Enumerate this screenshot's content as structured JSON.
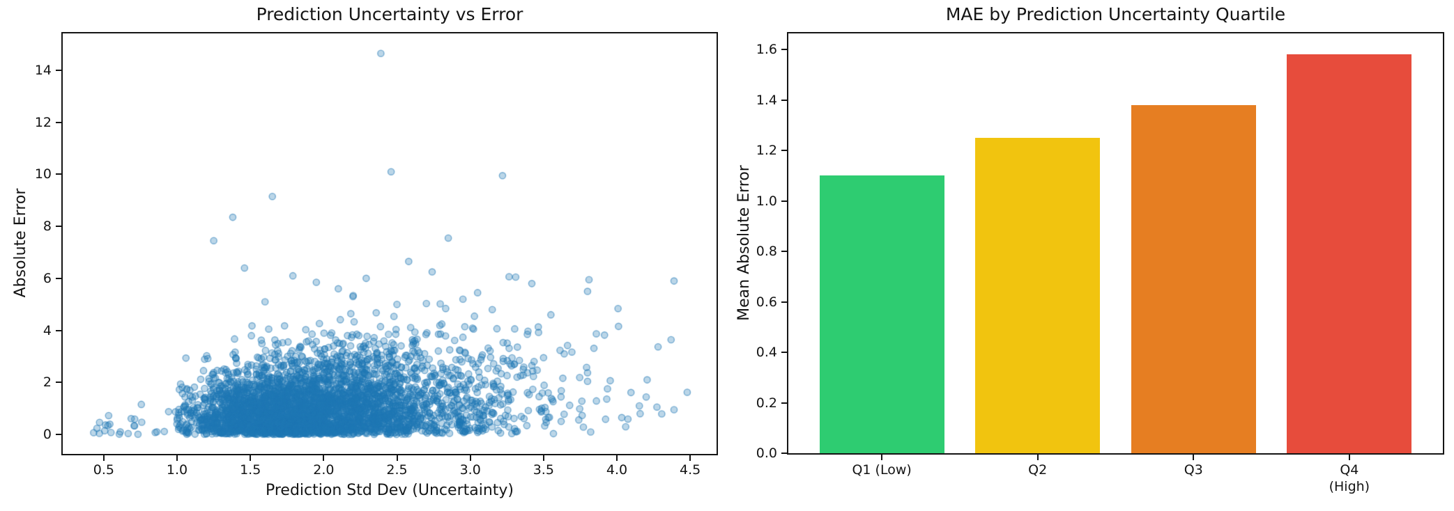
{
  "chart_data": [
    {
      "type": "scatter",
      "title": "Prediction Uncertainty vs Error",
      "xlabel": "Prediction Std Dev (Uncertainty)",
      "ylabel": "Absolute Error",
      "xlim": [
        0.22,
        4.68
      ],
      "ylim": [
        -0.75,
        15.42
      ],
      "xticks": [
        0.5,
        1.0,
        1.5,
        2.0,
        2.5,
        3.0,
        3.5,
        4.0,
        4.5
      ],
      "xtick_labels": [
        "0.5",
        "1.0",
        "1.5",
        "2.0",
        "2.5",
        "3.0",
        "3.5",
        "4.0",
        "4.5"
      ],
      "yticks": [
        0,
        2,
        4,
        6,
        8,
        10,
        12,
        14
      ],
      "ytick_labels": [
        "0",
        "2",
        "4",
        "6",
        "8",
        "10",
        "12",
        "14"
      ],
      "grid": false,
      "legend": null,
      "marker": {
        "color": "#1f77b4",
        "fill_alpha": 0.3,
        "edge_alpha": 0.55,
        "radius": 4.6,
        "edge_width": 1.4
      },
      "cloud": {
        "note": "dense semi-transparent point cloud; x log-normal around 1.9, abs-error half-normal whose spread grows with x",
        "n": 3800,
        "seed": 42,
        "x_median": 1.93,
        "x_log_sigma": 0.27,
        "x_min": 1.0,
        "x_max": 4.6,
        "y_sigma_base": 0.55,
        "y_sigma_slope": 0.45
      },
      "low_tail": {
        "n": 28,
        "x_min": 0.4,
        "x_max": 1.05,
        "y_sigma": 0.45
      },
      "outliers": [
        [
          2.39,
          14.65
        ],
        [
          2.46,
          10.1
        ],
        [
          3.22,
          9.95
        ],
        [
          1.65,
          9.15
        ],
        [
          1.38,
          8.35
        ],
        [
          1.25,
          7.45
        ],
        [
          2.85,
          7.55
        ],
        [
          2.58,
          6.65
        ],
        [
          1.46,
          6.4
        ],
        [
          2.74,
          6.25
        ],
        [
          1.79,
          6.1
        ],
        [
          2.29,
          6.0
        ],
        [
          3.31,
          6.05
        ],
        [
          1.95,
          5.85
        ],
        [
          2.1,
          5.6
        ],
        [
          3.42,
          5.8
        ],
        [
          3.05,
          5.45
        ],
        [
          3.81,
          5.95
        ],
        [
          3.8,
          5.5
        ],
        [
          4.39,
          5.9
        ],
        [
          3.55,
          4.6
        ],
        [
          3.86,
          3.87
        ],
        [
          4.37,
          3.64
        ],
        [
          3.5,
          2.95
        ],
        [
          3.8,
          2.37
        ],
        [
          3.8,
          2.04
        ],
        [
          4.48,
          1.62
        ],
        [
          4.2,
          1.44
        ],
        [
          4.39,
          0.95
        ],
        [
          3.62,
          0.5
        ],
        [
          2.2,
          5.3
        ],
        [
          2.95,
          5.2
        ],
        [
          1.6,
          5.1
        ],
        [
          2.5,
          5.0
        ],
        [
          3.15,
          4.8
        ]
      ]
    },
    {
      "type": "bar",
      "title": "MAE by Prediction Uncertainty Quartile",
      "xlabel": "",
      "ylabel": "Mean Absolute Error",
      "categories": [
        "Q1 (Low)",
        "Q2",
        "Q3",
        "Q4 (High)"
      ],
      "values": [
        1.1,
        1.25,
        1.38,
        1.58
      ],
      "colors": [
        "#2ecc71",
        "#f1c40f",
        "#e67e22",
        "#e74c3c"
      ],
      "xlim": [
        -0.6,
        3.6
      ],
      "ylim": [
        0,
        1.664
      ],
      "bar_width": 0.8,
      "yticks": [
        0.0,
        0.2,
        0.4,
        0.6,
        0.8,
        1.0,
        1.2,
        1.4,
        1.6
      ],
      "ytick_labels": [
        "0.0",
        "0.2",
        "0.4",
        "0.6",
        "0.8",
        "1.0",
        "1.2",
        "1.4",
        "1.6"
      ],
      "grid": false,
      "legend": null
    }
  ]
}
